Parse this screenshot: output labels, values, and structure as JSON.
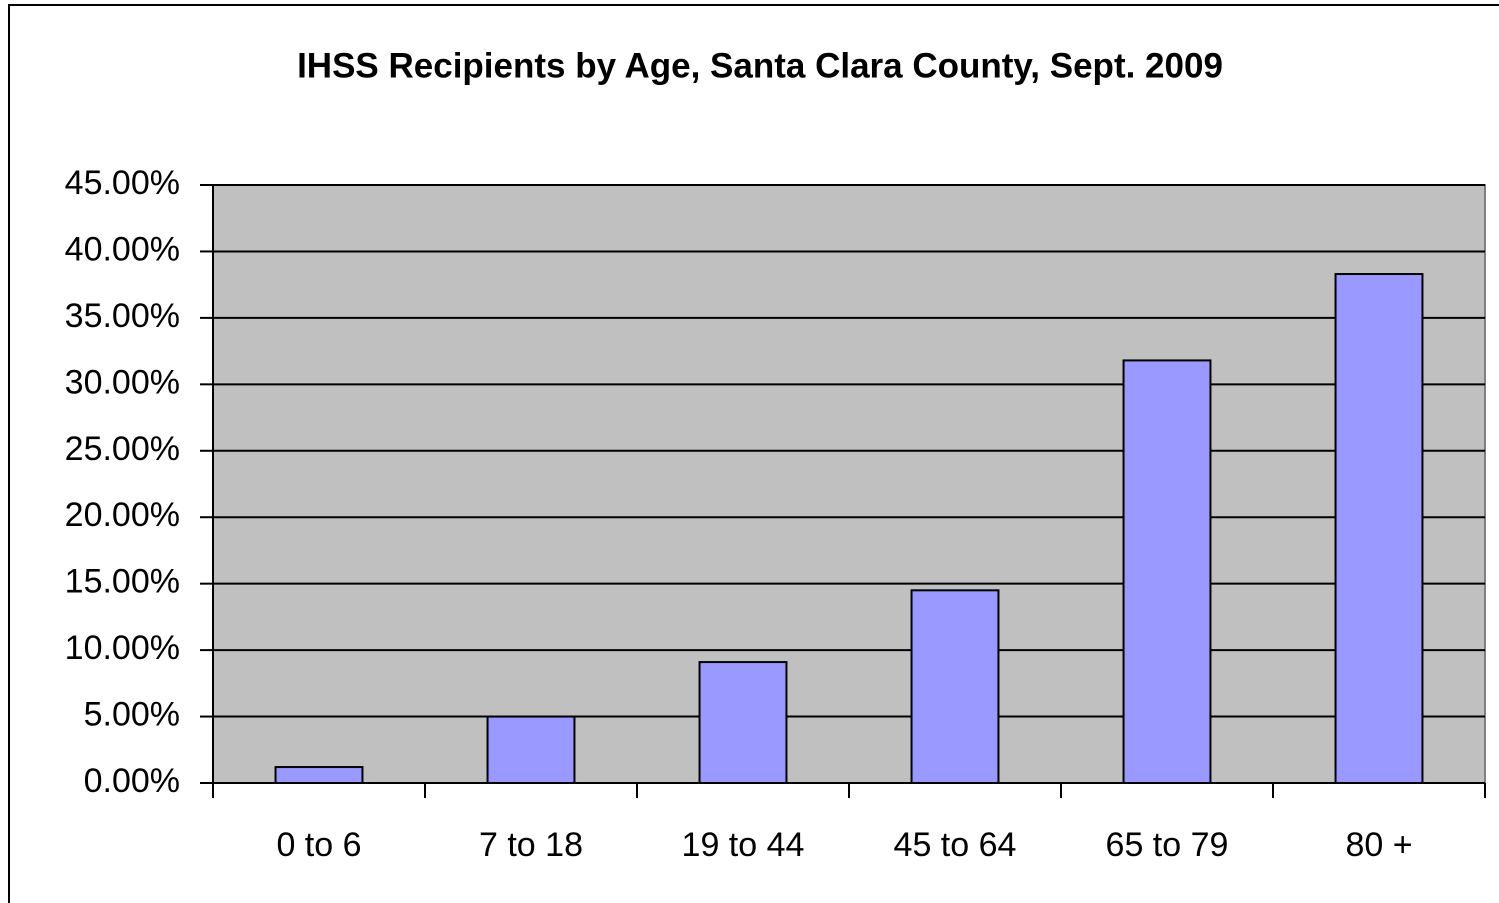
{
  "chart_data": {
    "type": "bar",
    "title": "IHSS Recipients by Age, Santa Clara County, Sept. 2009",
    "categories": [
      "0 to 6",
      "7 to 18",
      "19 to 44",
      "45 to 64",
      "65 to 79",
      "80 +"
    ],
    "values": [
      1.2,
      5.0,
      9.1,
      14.5,
      31.8,
      38.3
    ],
    "color": "#9999ff",
    "ylim": [
      0,
      45
    ],
    "yticks": [
      {
        "value": 0,
        "label": "0.00%"
      },
      {
        "value": 5,
        "label": "5.00%"
      },
      {
        "value": 10,
        "label": "10.00%"
      },
      {
        "value": 15,
        "label": "15.00%"
      },
      {
        "value": 20,
        "label": "20.00%"
      },
      {
        "value": 25,
        "label": "25.00%"
      },
      {
        "value": 30,
        "label": "30.00%"
      },
      {
        "value": 35,
        "label": "35.00%"
      },
      {
        "value": 40,
        "label": "40.00%"
      },
      {
        "value": 45,
        "label": "45.00%"
      }
    ],
    "grid": true
  }
}
